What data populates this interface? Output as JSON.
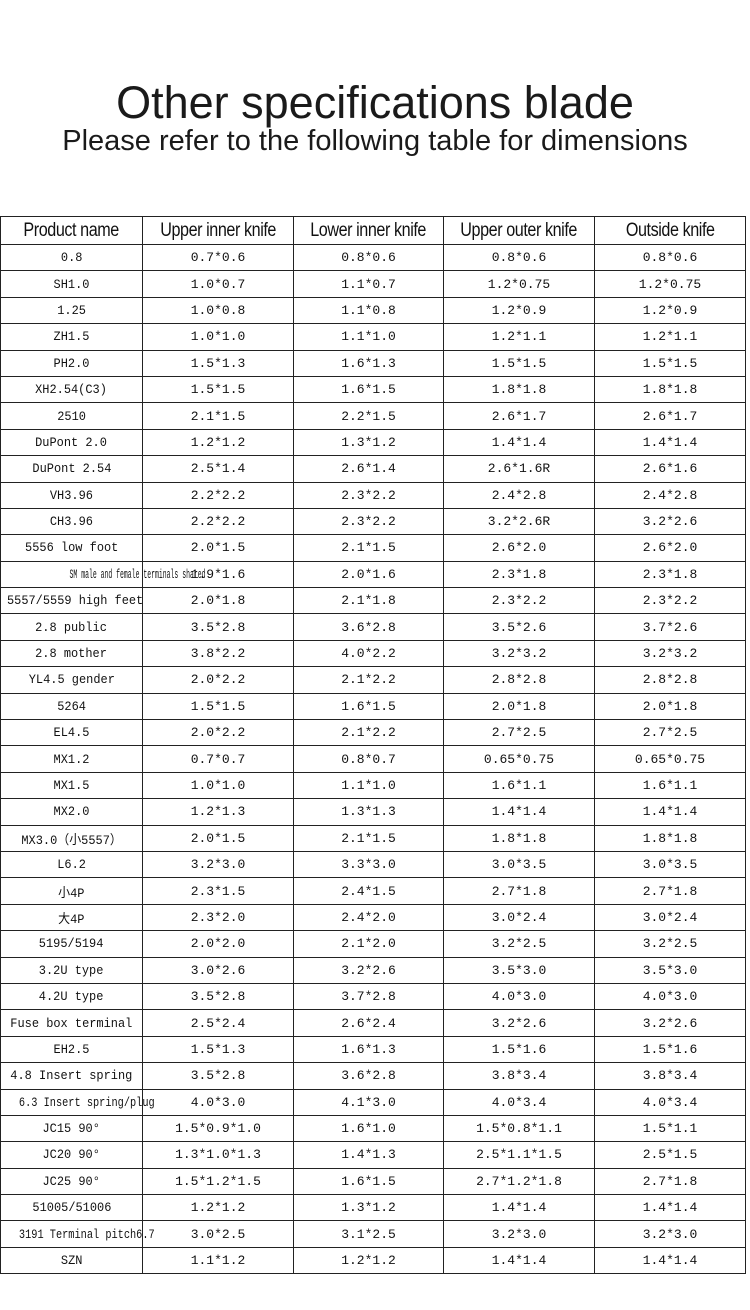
{
  "title": "Other specifications blade",
  "subtitle": "Please refer to the following table for dimensions",
  "table": {
    "headers": [
      "Product name",
      "Upper inner knife",
      "Lower inner knife",
      "Upper outer knife",
      "Outside knife"
    ],
    "rows": [
      [
        "0.8",
        "0.7*0.6",
        "0.8*0.6",
        "0.8*0.6",
        "0.8*0.6"
      ],
      [
        "SH1.0",
        "1.0*0.7",
        "1.1*0.7",
        "1.2*0.75",
        "1.2*0.75"
      ],
      [
        "1.25",
        "1.0*0.8",
        "1.1*0.8",
        "1.2*0.9",
        "1.2*0.9"
      ],
      [
        "ZH1.5",
        "1.0*1.0",
        "1.1*1.0",
        "1.2*1.1",
        "1.2*1.1"
      ],
      [
        "PH2.0",
        "1.5*1.3",
        "1.6*1.3",
        "1.5*1.5",
        "1.5*1.5"
      ],
      [
        "XH2.54(C3)",
        "1.5*1.5",
        "1.6*1.5",
        "1.8*1.8",
        "1.8*1.8"
      ],
      [
        "2510",
        "2.1*1.5",
        "2.2*1.5",
        "2.6*1.7",
        "2.6*1.7"
      ],
      [
        "DuPont 2.0",
        "1.2*1.2",
        "1.3*1.2",
        "1.4*1.4",
        "1.4*1.4"
      ],
      [
        "DuPont 2.54",
        "2.5*1.4",
        "2.6*1.4",
        "2.6*1.6R",
        "2.6*1.6"
      ],
      [
        "VH3.96",
        "2.2*2.2",
        "2.3*2.2",
        "2.4*2.8",
        "2.4*2.8"
      ],
      [
        "CH3.96",
        "2.2*2.2",
        "2.3*2.2",
        "3.2*2.6R",
        "3.2*2.6"
      ],
      [
        "5556 low foot",
        "2.0*1.5",
        "2.1*1.5",
        "2.6*2.0",
        "2.6*2.0"
      ],
      [
        "SM male and female terminals shared",
        "1.9*1.6",
        "2.0*1.6",
        "2.3*1.8",
        "2.3*1.8"
      ],
      [
        "5557/5559 high feet",
        "2.0*1.8",
        "2.1*1.8",
        "2.3*2.2",
        "2.3*2.2"
      ],
      [
        "2.8 public",
        "3.5*2.8",
        "3.6*2.8",
        "3.5*2.6",
        "3.7*2.6"
      ],
      [
        "2.8 mother",
        "3.8*2.2",
        "4.0*2.2",
        "3.2*3.2",
        "3.2*3.2"
      ],
      [
        "YL4.5 gender",
        "2.0*2.2",
        "2.1*2.2",
        "2.8*2.8",
        "2.8*2.8"
      ],
      [
        "5264",
        "1.5*1.5",
        "1.6*1.5",
        "2.0*1.8",
        "2.0*1.8"
      ],
      [
        "EL4.5",
        "2.0*2.2",
        "2.1*2.2",
        "2.7*2.5",
        "2.7*2.5"
      ],
      [
        "MX1.2",
        "0.7*0.7",
        "0.8*0.7",
        "0.65*0.75",
        "0.65*0.75"
      ],
      [
        "MX1.5",
        "1.0*1.0",
        "1.1*1.0",
        "1.6*1.1",
        "1.6*1.1"
      ],
      [
        "MX2.0",
        "1.2*1.3",
        "1.3*1.3",
        "1.4*1.4",
        "1.4*1.4"
      ],
      [
        "MX3.0（小5557）",
        "2.0*1.5",
        "2.1*1.5",
        "1.8*1.8",
        "1.8*1.8"
      ],
      [
        "L6.2",
        "3.2*3.0",
        "3.3*3.0",
        "3.0*3.5",
        "3.0*3.5"
      ],
      [
        "小4P",
        "2.3*1.5",
        "2.4*1.5",
        "2.7*1.8",
        "2.7*1.8"
      ],
      [
        "大4P",
        "2.3*2.0",
        "2.4*2.0",
        "3.0*2.4",
        "3.0*2.4"
      ],
      [
        "5195/5194",
        "2.0*2.0",
        "2.1*2.0",
        "3.2*2.5",
        "3.2*2.5"
      ],
      [
        "3.2U type",
        "3.0*2.6",
        "3.2*2.6",
        "3.5*3.0",
        "3.5*3.0"
      ],
      [
        "4.2U type",
        "3.5*2.8",
        "3.7*2.8",
        "4.0*3.0",
        "4.0*3.0"
      ],
      [
        "Fuse box terminal",
        "2.5*2.4",
        "2.6*2.4",
        "3.2*2.6",
        "3.2*2.6"
      ],
      [
        "EH2.5",
        "1.5*1.3",
        "1.6*1.3",
        "1.5*1.6",
        "1.5*1.6"
      ],
      [
        "4.8 Insert spring",
        "3.5*2.8",
        "3.6*2.8",
        "3.8*3.4",
        "3.8*3.4"
      ],
      [
        "6.3 Insert spring/plug",
        "4.0*3.0",
        "4.1*3.0",
        "4.0*3.4",
        "4.0*3.4"
      ],
      [
        "JC15 90°",
        "1.5*0.9*1.0",
        "1.6*1.0",
        "1.5*0.8*1.1",
        "1.5*1.1"
      ],
      [
        "JC20 90°",
        "1.3*1.0*1.3",
        "1.4*1.3",
        "2.5*1.1*1.5",
        "2.5*1.5"
      ],
      [
        "JC25 90°",
        "1.5*1.2*1.5",
        "1.6*1.5",
        "2.7*1.2*1.8",
        "2.7*1.8"
      ],
      [
        "51005/51006",
        "1.2*1.2",
        "1.3*1.2",
        "1.4*1.4",
        "1.4*1.4"
      ],
      [
        "3191 Terminal pitch6.7",
        "3.0*2.5",
        "3.1*2.5",
        "3.2*3.0",
        "3.2*3.0"
      ],
      [
        "SZN",
        "1.1*1.2",
        "1.2*1.2",
        "1.4*1.4",
        "1.4*1.4"
      ]
    ]
  }
}
